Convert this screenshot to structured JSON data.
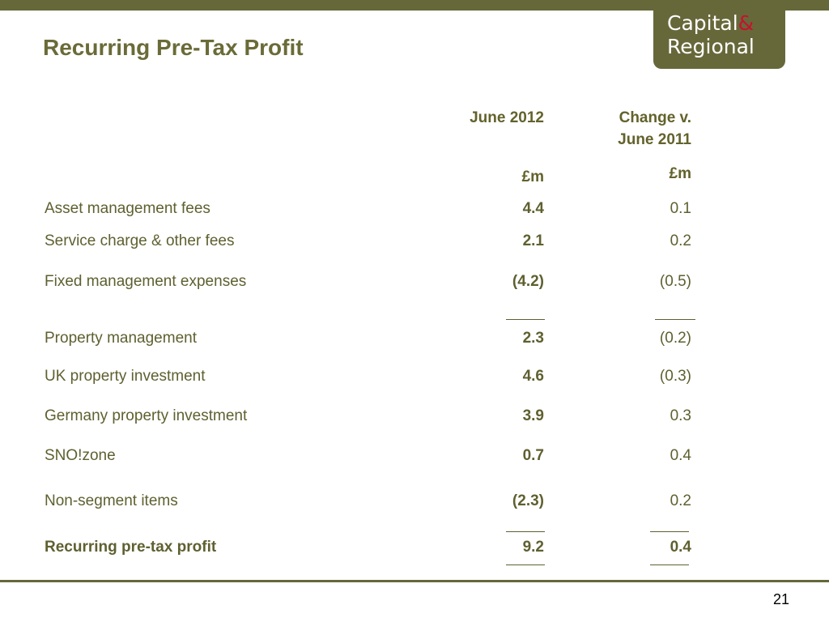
{
  "logo": {
    "line1": "Capital",
    "amp": "&",
    "line2": "Regional"
  },
  "title": "Recurring Pre-Tax Profit",
  "table": {
    "col1_header": "June 2012",
    "col2_header_line1": "Change v.",
    "col2_header_line2": "June 2011",
    "col1_unit": "£m",
    "col2_unit": "£m",
    "rows": [
      {
        "label": "Asset management fees",
        "v1": "4.4",
        "v2": "0.1"
      },
      {
        "label": "Service charge & other fees",
        "v1": "2.1",
        "v2": "0.2"
      },
      {
        "label": "Fixed management expenses",
        "v1": "(4.2)",
        "v2": "(0.5)"
      },
      {
        "label": "Property management",
        "v1": "2.3",
        "v2": "(0.2)"
      },
      {
        "label": "UK property investment",
        "v1": "4.6",
        "v2": "(0.3)"
      },
      {
        "label": "Germany property investment",
        "v1": "3.9",
        "v2": "0.3"
      },
      {
        "label": "SNO!zone",
        "v1": "0.7",
        "v2": "0.4"
      },
      {
        "label": "Non-segment items",
        "v1": "(2.3)",
        "v2": "0.2"
      }
    ],
    "total": {
      "label": "Recurring pre-tax profit",
      "v1": "9.2",
      "v2": "0.4"
    }
  },
  "page_number": "21"
}
